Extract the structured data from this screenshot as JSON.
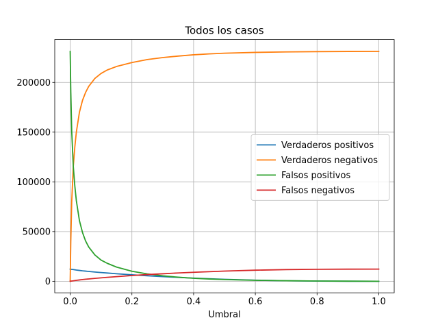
{
  "chart_data": {
    "type": "line",
    "title": "Todos los casos",
    "xlabel": "Umbral",
    "ylabel": "",
    "xlim": [
      -0.05,
      1.05
    ],
    "ylim": [
      -11600,
      243200
    ],
    "xticks": [
      0.0,
      0.2,
      0.4,
      0.6,
      0.8,
      1.0
    ],
    "xtick_labels": [
      "0.0",
      "0.2",
      "0.4",
      "0.6",
      "0.8",
      "1.0"
    ],
    "yticks": [
      0,
      50000,
      100000,
      150000,
      200000
    ],
    "ytick_labels": [
      "0",
      "50000",
      "100000",
      "150000",
      "200000"
    ],
    "grid": true,
    "legend_position": "center-right",
    "x": [
      0.0,
      0.002,
      0.005,
      0.01,
      0.015,
      0.02,
      0.03,
      0.04,
      0.05,
      0.06,
      0.08,
      0.1,
      0.12,
      0.15,
      0.2,
      0.25,
      0.3,
      0.35,
      0.4,
      0.45,
      0.5,
      0.6,
      0.7,
      0.8,
      0.9,
      1.0
    ],
    "series": [
      {
        "name": "Verdaderos positivos",
        "color": "#1f77b4",
        "values": [
          12200,
          12100,
          12000,
          11800,
          11550,
          11300,
          10900,
          10500,
          10200,
          9900,
          9300,
          8800,
          8300,
          7600,
          6500,
          5500,
          4700,
          3900,
          3200,
          2600,
          2000,
          1100,
          500,
          200,
          50,
          0
        ]
      },
      {
        "name": "Verdaderos negativos",
        "color": "#ff7f0e",
        "values": [
          0,
          40000,
          80000,
          115000,
          135000,
          150000,
          170000,
          182000,
          190000,
          196000,
          204000,
          209000,
          212500,
          216000,
          220000,
          223000,
          225000,
          226500,
          227800,
          228700,
          229400,
          230200,
          230700,
          231000,
          231150,
          231200
        ]
      },
      {
        "name": "Falsos positivos",
        "color": "#2ca02c",
        "values": [
          231200,
          191000,
          151000,
          116000,
          96000,
          81000,
          61000,
          49000,
          40500,
          34500,
          26500,
          21300,
          18100,
          14300,
          10100,
          7400,
          5500,
          4100,
          3000,
          2300,
          1700,
          1000,
          550,
          280,
          120,
          0
        ]
      },
      {
        "name": "Falsos negativos",
        "color": "#d62728",
        "values": [
          0,
          120,
          250,
          450,
          700,
          950,
          1350,
          1750,
          2050,
          2350,
          2950,
          3450,
          3950,
          4650,
          5750,
          6750,
          7550,
          8350,
          9050,
          9650,
          10250,
          11150,
          11750,
          12050,
          12200,
          12250
        ]
      }
    ]
  }
}
